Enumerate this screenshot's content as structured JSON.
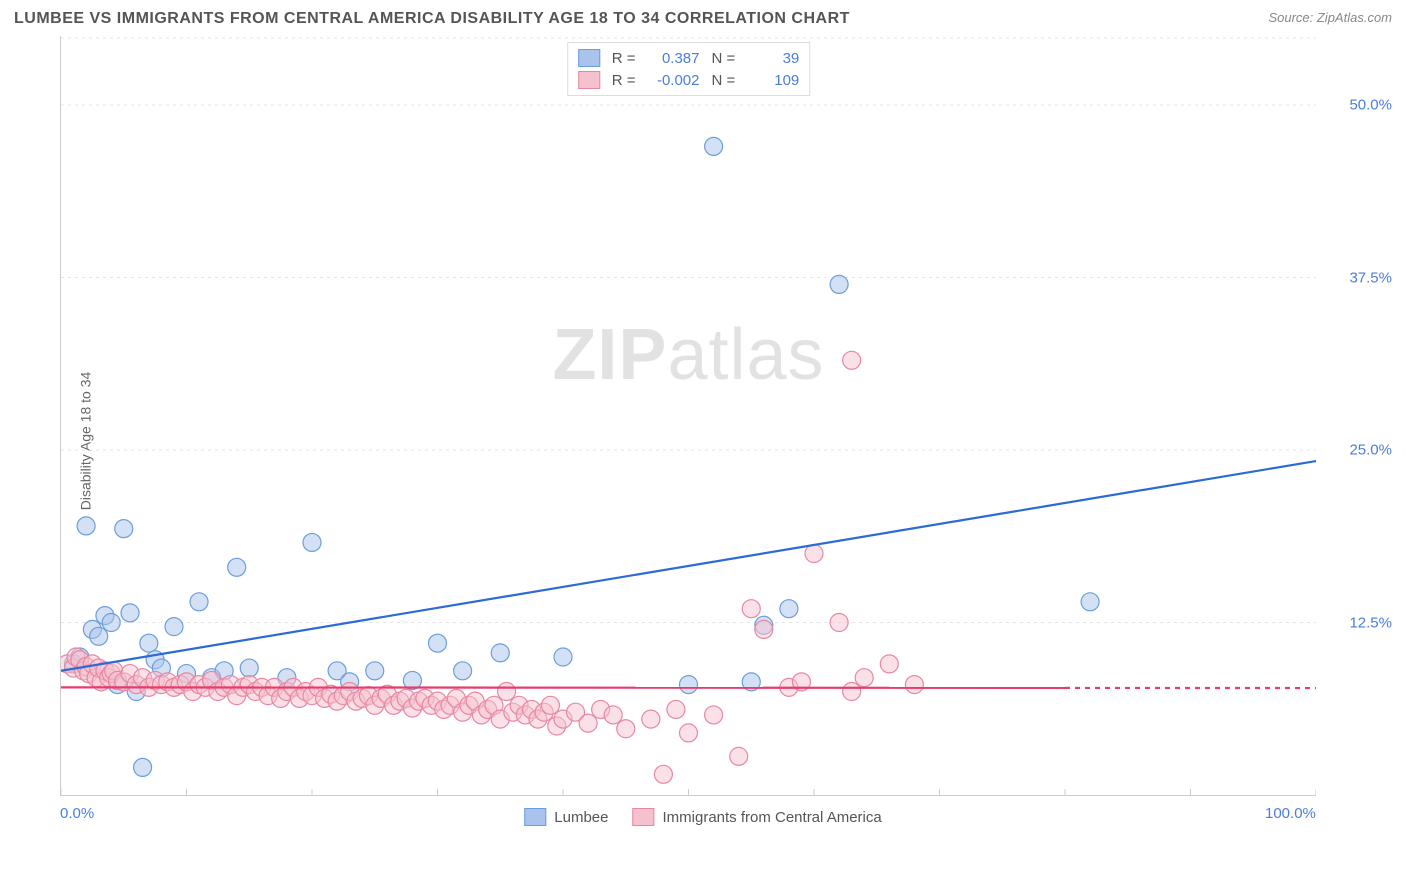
{
  "title": "LUMBEE VS IMMIGRANTS FROM CENTRAL AMERICA DISABILITY AGE 18 TO 34 CORRELATION CHART",
  "source": "Source: ZipAtlas.com",
  "watermark_bold": "ZIP",
  "watermark_light": "atlas",
  "y_axis_label": "Disability Age 18 to 34",
  "chart": {
    "type": "scatter",
    "xlim": [
      0,
      100
    ],
    "ylim": [
      0,
      55
    ],
    "x_ticks": [
      0,
      10,
      20,
      30,
      40,
      50,
      60,
      70,
      80,
      90,
      100
    ],
    "x_tick_labels_shown": {
      "0": "0.0%",
      "100": "100.0%"
    },
    "y_ticks": [
      12.5,
      25.0,
      37.5,
      50.0
    ],
    "y_tick_labels": [
      "12.5%",
      "25.0%",
      "37.5%",
      "50.0%"
    ],
    "grid_color": "#e5e5e5",
    "background_color": "#ffffff",
    "axis_color": "#cccccc",
    "tick_label_color": "#4a7fd8",
    "marker_radius": 9,
    "marker_stroke_width": 1.2,
    "marker_fill_opacity": 0.25,
    "trend_line_width": 2.2,
    "series": [
      {
        "name": "Lumbee",
        "color_fill": "#a9c3ec",
        "color_stroke": "#6b9edb",
        "trend_color": "#2b6bd4",
        "R": "0.387",
        "N": "39",
        "trend": {
          "x1": 0,
          "y1": 9.0,
          "x2": 100,
          "y2": 24.2,
          "dash_from_x": null
        },
        "points": [
          [
            1,
            9.5
          ],
          [
            1.5,
            10
          ],
          [
            2,
            19.5
          ],
          [
            2.5,
            12
          ],
          [
            3,
            11.5
          ],
          [
            3.5,
            13
          ],
          [
            4,
            12.5
          ],
          [
            4.5,
            8
          ],
          [
            5,
            19.3
          ],
          [
            5.5,
            13.2
          ],
          [
            6,
            7.5
          ],
          [
            6.5,
            2.0
          ],
          [
            7,
            11
          ],
          [
            7.5,
            9.8
          ],
          [
            8,
            9.2
          ],
          [
            9,
            12.2
          ],
          [
            10,
            8.8
          ],
          [
            11,
            14
          ],
          [
            12,
            8.5
          ],
          [
            13,
            9
          ],
          [
            14,
            16.5
          ],
          [
            15,
            9.2
          ],
          [
            18,
            8.5
          ],
          [
            20,
            18.3
          ],
          [
            22,
            9
          ],
          [
            23,
            8.2
          ],
          [
            25,
            9
          ],
          [
            28,
            8.3
          ],
          [
            30,
            11
          ],
          [
            32,
            9
          ],
          [
            35,
            10.3
          ],
          [
            40,
            10
          ],
          [
            50,
            8
          ],
          [
            52,
            47
          ],
          [
            56,
            12.3
          ],
          [
            58,
            13.5
          ],
          [
            62,
            37
          ],
          [
            82,
            14
          ],
          [
            55,
            8.2
          ]
        ]
      },
      {
        "name": "Immigrants from Central America",
        "color_fill": "#f6c1cf",
        "color_stroke": "#e788a3",
        "trend_color": "#e93b6a",
        "R": "-0.002",
        "N": "109",
        "trend": {
          "x1": 0,
          "y1": 7.8,
          "x2": 100,
          "y2": 7.75,
          "dash_from_x": 80
        },
        "points": [
          [
            0.5,
            9.5
          ],
          [
            1,
            9.2
          ],
          [
            1.2,
            10
          ],
          [
            1.5,
            9.8
          ],
          [
            1.8,
            9
          ],
          [
            2,
            9.3
          ],
          [
            2.2,
            8.8
          ],
          [
            2.5,
            9.5
          ],
          [
            2.8,
            8.5
          ],
          [
            3,
            9.2
          ],
          [
            3.2,
            8.2
          ],
          [
            3.5,
            9
          ],
          [
            3.8,
            8.5
          ],
          [
            4,
            8.8
          ],
          [
            4.2,
            9
          ],
          [
            4.5,
            8.3
          ],
          [
            5,
            8.2
          ],
          [
            5.5,
            8.8
          ],
          [
            6,
            8
          ],
          [
            6.5,
            8.5
          ],
          [
            7,
            7.8
          ],
          [
            7.5,
            8.3
          ],
          [
            8,
            8
          ],
          [
            8.5,
            8.2
          ],
          [
            9,
            7.8
          ],
          [
            9.5,
            8
          ],
          [
            10,
            8.2
          ],
          [
            10.5,
            7.5
          ],
          [
            11,
            8
          ],
          [
            11.5,
            7.8
          ],
          [
            12,
            8.3
          ],
          [
            12.5,
            7.5
          ],
          [
            13,
            7.8
          ],
          [
            13.5,
            8
          ],
          [
            14,
            7.2
          ],
          [
            14.5,
            7.8
          ],
          [
            15,
            8
          ],
          [
            15.5,
            7.5
          ],
          [
            16,
            7.8
          ],
          [
            16.5,
            7.2
          ],
          [
            17,
            7.8
          ],
          [
            17.5,
            7
          ],
          [
            18,
            7.5
          ],
          [
            18.5,
            7.8
          ],
          [
            19,
            7
          ],
          [
            19.5,
            7.5
          ],
          [
            20,
            7.2
          ],
          [
            20.5,
            7.8
          ],
          [
            21,
            7
          ],
          [
            21.5,
            7.3
          ],
          [
            22,
            6.8
          ],
          [
            22.5,
            7.2
          ],
          [
            23,
            7.5
          ],
          [
            23.5,
            6.8
          ],
          [
            24,
            7
          ],
          [
            24.5,
            7.2
          ],
          [
            25,
            6.5
          ],
          [
            25.5,
            7
          ],
          [
            26,
            7.3
          ],
          [
            26.5,
            6.5
          ],
          [
            27,
            6.8
          ],
          [
            27.5,
            7
          ],
          [
            28,
            6.3
          ],
          [
            28.5,
            6.8
          ],
          [
            29,
            7
          ],
          [
            29.5,
            6.5
          ],
          [
            30,
            6.8
          ],
          [
            30.5,
            6.2
          ],
          [
            31,
            6.5
          ],
          [
            31.5,
            7
          ],
          [
            32,
            6
          ],
          [
            32.5,
            6.5
          ],
          [
            33,
            6.8
          ],
          [
            33.5,
            5.8
          ],
          [
            34,
            6.2
          ],
          [
            34.5,
            6.5
          ],
          [
            35,
            5.5
          ],
          [
            35.5,
            7.5
          ],
          [
            36,
            6
          ],
          [
            36.5,
            6.5
          ],
          [
            37,
            5.8
          ],
          [
            37.5,
            6.2
          ],
          [
            38,
            5.5
          ],
          [
            38.5,
            6
          ],
          [
            39,
            6.5
          ],
          [
            39.5,
            5
          ],
          [
            40,
            5.5
          ],
          [
            41,
            6
          ],
          [
            42,
            5.2
          ],
          [
            43,
            6.2
          ],
          [
            44,
            5.8
          ],
          [
            45,
            4.8
          ],
          [
            47,
            5.5
          ],
          [
            48,
            1.5
          ],
          [
            49,
            6.2
          ],
          [
            50,
            4.5
          ],
          [
            52,
            5.8
          ],
          [
            54,
            2.8
          ],
          [
            55,
            13.5
          ],
          [
            56,
            12
          ],
          [
            58,
            7.8
          ],
          [
            59,
            8.2
          ],
          [
            60,
            17.5
          ],
          [
            62,
            12.5
          ],
          [
            63,
            7.5
          ],
          [
            64,
            8.5
          ],
          [
            66,
            9.5
          ],
          [
            63,
            31.5
          ],
          [
            68,
            8
          ]
        ]
      }
    ]
  },
  "legend_bottom": [
    {
      "label": "Lumbee",
      "fill": "#a9c3ec",
      "stroke": "#6b9edb"
    },
    {
      "label": "Immigrants from Central America",
      "fill": "#f6c1cf",
      "stroke": "#e788a3"
    }
  ]
}
